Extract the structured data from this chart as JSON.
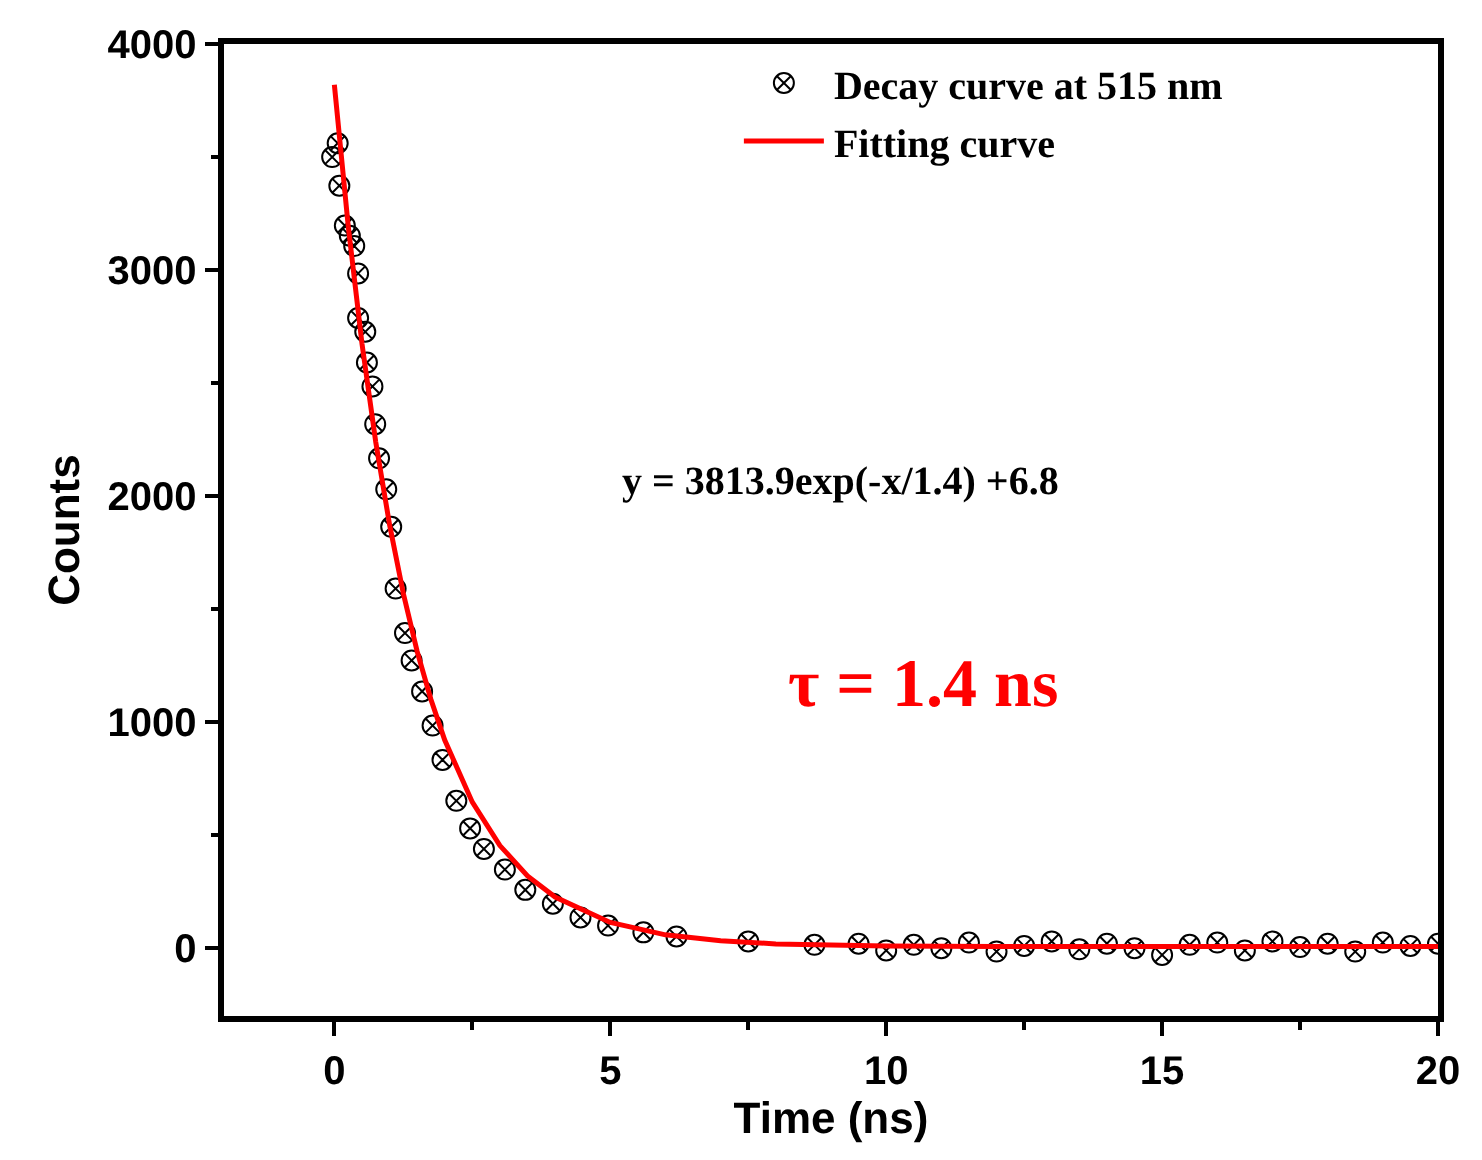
{
  "chart_data": {
    "type": "scatter",
    "xlabel": "Time (ns)",
    "ylabel": "Counts",
    "xlim": [
      -2,
      20
    ],
    "xticks": [
      0,
      5,
      10,
      15,
      20
    ],
    "ylim": [
      -300,
      4000
    ],
    "yticks": [
      0,
      1000,
      2000,
      3000,
      4000
    ],
    "legend": "top right",
    "marker": "cross",
    "annotations": [
      "y = 3813.9exp(-x/1.4) +6.8",
      "τ = 1.4 ns"
    ],
    "series": [
      {
        "name": "Decay curve at 515 nm",
        "color": "#000000",
        "x": [
          -0.04,
          0.06,
          0.09,
          0.19,
          0.28,
          0.36,
          0.43,
          0.43,
          0.56,
          0.59,
          0.69,
          0.74,
          0.81,
          0.94,
          1.03,
          1.11,
          1.28,
          1.4,
          1.59,
          1.78,
          1.96,
          2.21,
          2.46,
          2.71,
          3.09,
          3.46,
          3.96,
          4.46,
          4.96,
          5.6,
          6.2,
          7.5,
          8.7,
          9.5,
          10,
          10.5,
          11,
          11.5,
          12,
          12.5,
          13,
          13.5,
          14,
          14.5,
          15,
          15.5,
          16,
          16.5,
          17,
          17.5,
          18,
          18.5,
          19,
          19.5,
          20
        ],
        "values": [
          3500,
          3561,
          3373,
          3197,
          3152,
          3106,
          2985,
          2788,
          2727,
          2591,
          2485,
          2318,
          2167,
          2030,
          1864,
          1591,
          1394,
          1273,
          1136,
          985,
          833,
          652,
          530,
          439,
          348,
          258,
          197,
          136,
          100,
          70,
          52,
          30,
          15,
          20,
          -10,
          15,
          0,
          25,
          -15,
          10,
          30,
          -5,
          20,
          0,
          -30,
          15,
          25,
          -10,
          30,
          5,
          20,
          -15,
          25,
          10,
          20
        ]
      },
      {
        "name": "Fitting curve",
        "type": "line",
        "color": "#ff0000",
        "marker": "none",
        "x": [
          0,
          0.25,
          0.5,
          0.75,
          1,
          1.25,
          1.5,
          1.75,
          2,
          2.5,
          3,
          3.5,
          4,
          5,
          6,
          7,
          8,
          10,
          12,
          15,
          20
        ],
        "values": [
          3820,
          3197,
          2675,
          2239,
          1874,
          1569,
          1313,
          1100,
          921,
          646,
          454,
          320,
          226,
          114,
          59,
          33,
          19,
          10,
          8,
          7,
          7
        ]
      }
    ]
  }
}
